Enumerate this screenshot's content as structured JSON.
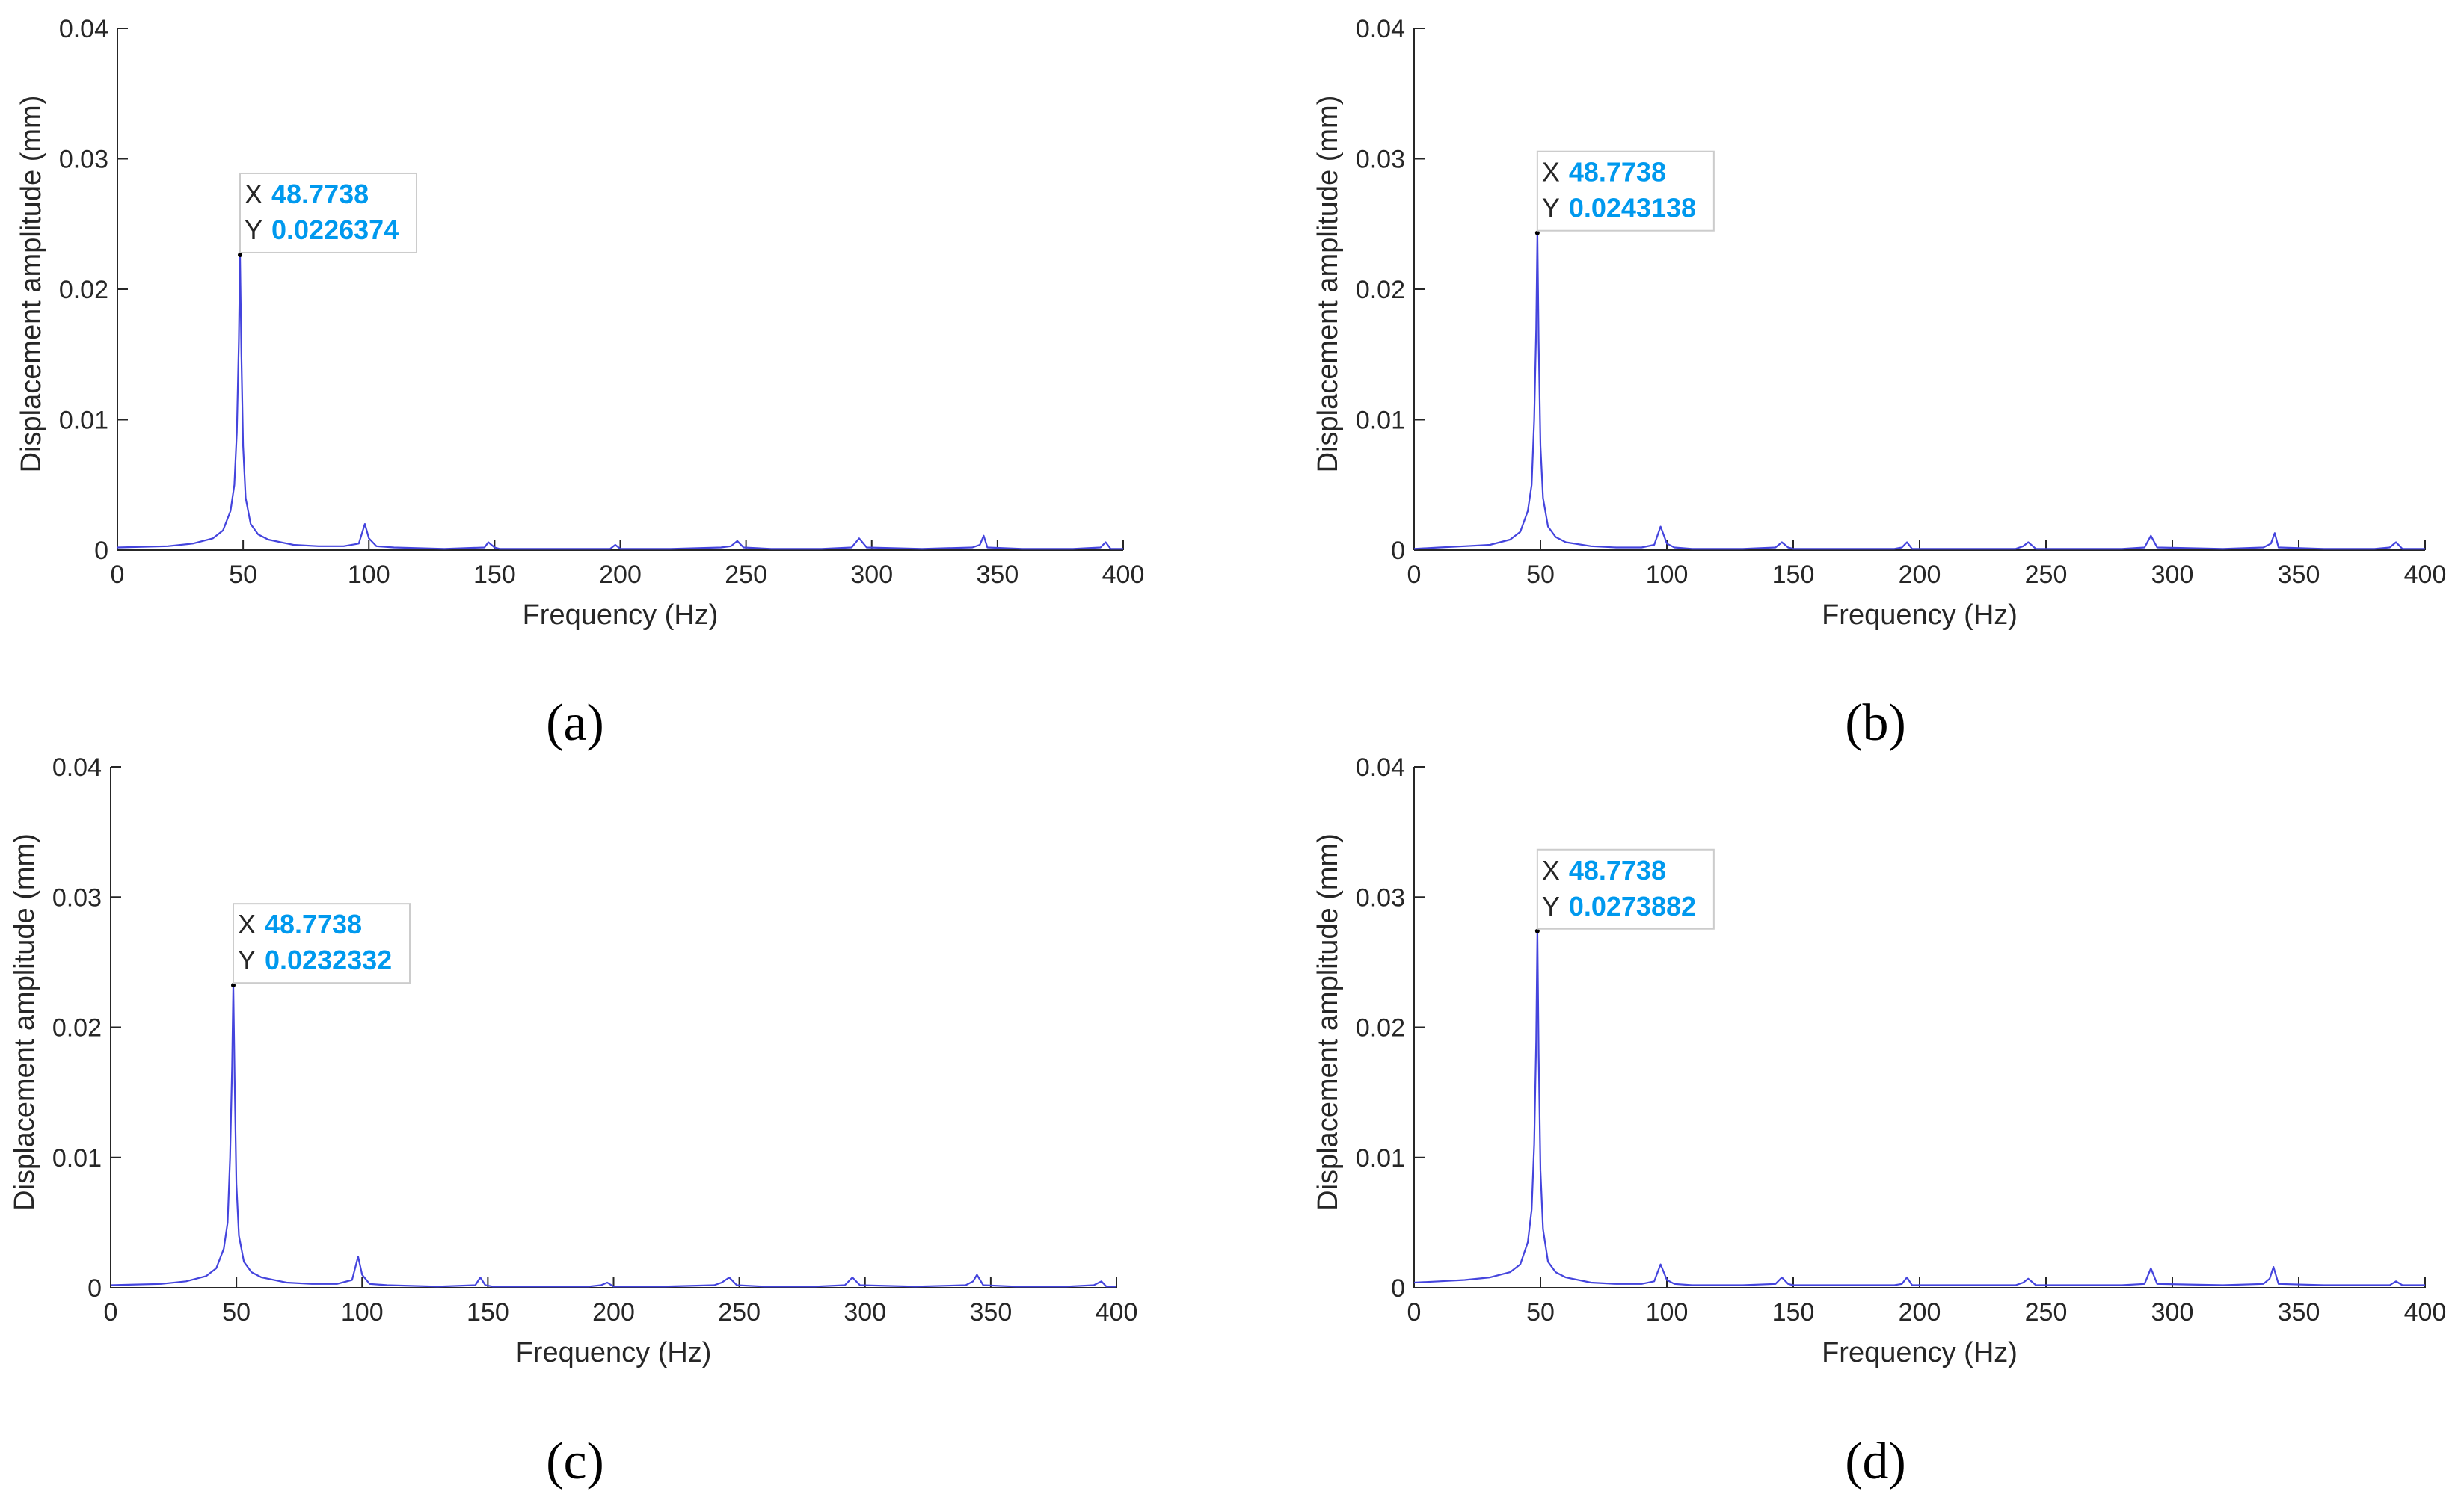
{
  "chart_data": [
    {
      "type": "line",
      "panel_label": "(a)",
      "xlabel": "Frequency (Hz)",
      "ylabel": "Displacement amplitude (mm)",
      "xlim": [
        0,
        400
      ],
      "ylim": [
        0,
        0.04
      ],
      "xticks": [
        "0",
        "50",
        "100",
        "150",
        "200",
        "250",
        "300",
        "350",
        "400"
      ],
      "yticks": [
        "0",
        "0.01",
        "0.02",
        "0.03",
        "0.04"
      ],
      "grid": false,
      "line_color": "#4444dd",
      "datatip": {
        "x_key": "X",
        "x_value": "48.7738",
        "y_key": "Y",
        "y_value": "0.0226374"
      },
      "series": [
        {
          "x": [
            0,
            10,
            20,
            30,
            38,
            42,
            45,
            46.5,
            47.5,
            48.3,
            48.7738,
            49.3,
            50,
            51,
            53,
            56,
            60,
            70,
            80,
            90,
            96,
            98.4,
            100,
            103,
            110,
            130,
            146,
            147.5,
            150,
            152,
            170,
            190,
            196,
            198,
            200,
            220,
            240,
            244,
            246.5,
            249,
            260,
            280,
            292,
            295,
            298,
            320,
            340,
            343,
            344.5,
            346,
            360,
            380,
            391,
            393,
            395,
            400
          ],
          "y": [
            0.0002,
            0.00025,
            0.0003,
            0.0005,
            0.0009,
            0.0015,
            0.003,
            0.005,
            0.009,
            0.016,
            0.0226374,
            0.015,
            0.008,
            0.004,
            0.002,
            0.0012,
            0.0008,
            0.0004,
            0.0003,
            0.0003,
            0.0005,
            0.002,
            0.0009,
            0.0003,
            0.0002,
            0.0001,
            0.0002,
            0.0006,
            0.0002,
            0.0001,
            0.0001,
            0.0001,
            0.0001,
            0.0004,
            0.0001,
            0.0001,
            0.0002,
            0.0003,
            0.0007,
            0.0002,
            0.0001,
            0.0001,
            0.0002,
            0.0009,
            0.0002,
            0.0001,
            0.0002,
            0.0004,
            0.0011,
            0.0002,
            0.0001,
            0.0001,
            0.0002,
            0.0006,
            0.0001,
            0.0001
          ]
        }
      ]
    },
    {
      "type": "line",
      "panel_label": "(b)",
      "xlabel": "Frequency (Hz)",
      "ylabel": "Displacement amplitude (mm)",
      "xlim": [
        0,
        400
      ],
      "ylim": [
        0,
        0.04
      ],
      "xticks": [
        "0",
        "50",
        "100",
        "150",
        "200",
        "250",
        "300",
        "350",
        "400"
      ],
      "yticks": [
        "0",
        "0.01",
        "0.02",
        "0.03",
        "0.04"
      ],
      "grid": false,
      "line_color": "#4444dd",
      "datatip": {
        "x_key": "X",
        "x_value": "48.7738",
        "y_key": "Y",
        "y_value": "0.0243138"
      },
      "series": [
        {
          "x": [
            0,
            10,
            20,
            30,
            38,
            42,
            45,
            46.5,
            47.5,
            48.3,
            48.7738,
            49.3,
            50,
            51,
            53,
            56,
            60,
            70,
            80,
            90,
            95,
            97.5,
            100,
            103,
            110,
            130,
            143,
            145.5,
            148,
            150,
            170,
            190,
            193,
            195,
            197,
            220,
            238,
            241,
            243,
            246,
            260,
            280,
            289,
            291.5,
            294,
            320,
            336,
            339,
            340.5,
            342,
            360,
            380,
            386,
            388.5,
            391,
            400
          ],
          "y": [
            0.0001,
            0.0002,
            0.0003,
            0.0004,
            0.0008,
            0.0014,
            0.003,
            0.005,
            0.01,
            0.017,
            0.0243138,
            0.016,
            0.008,
            0.004,
            0.0018,
            0.001,
            0.0006,
            0.0003,
            0.0002,
            0.0002,
            0.0004,
            0.0018,
            0.0005,
            0.0002,
            0.0001,
            0.0001,
            0.0002,
            0.0006,
            0.0002,
            0.0001,
            0.0001,
            0.0001,
            0.0002,
            0.0006,
            0.0001,
            0.0001,
            0.0001,
            0.0003,
            0.0006,
            0.0001,
            0.0001,
            0.0001,
            0.0002,
            0.0011,
            0.0002,
            0.0001,
            0.0002,
            0.0005,
            0.0013,
            0.0002,
            0.0001,
            0.0001,
            0.0002,
            0.0006,
            0.0001,
            0.0001
          ]
        }
      ]
    },
    {
      "type": "line",
      "panel_label": "(c)",
      "xlabel": "Frequency (Hz)",
      "ylabel": "Displacement amplitude (mm)",
      "xlim": [
        0,
        400
      ],
      "ylim": [
        0,
        0.04
      ],
      "xticks": [
        "0",
        "50",
        "100",
        "150",
        "200",
        "250",
        "300",
        "350",
        "400"
      ],
      "yticks": [
        "0",
        "0.01",
        "0.02",
        "0.03",
        "0.04"
      ],
      "grid": false,
      "line_color": "#4444dd",
      "datatip": {
        "x_key": "X",
        "x_value": "48.7738",
        "y_key": "Y",
        "y_value": "0.0232332"
      },
      "series": [
        {
          "x": [
            0,
            10,
            20,
            30,
            38,
            42,
            45,
            46.5,
            47.5,
            48.3,
            48.7738,
            49.3,
            50,
            51,
            53,
            56,
            60,
            70,
            80,
            90,
            96,
            98.4,
            100,
            103,
            110,
            130,
            145,
            147,
            149,
            152,
            170,
            190,
            195,
            197.5,
            200,
            220,
            240,
            243,
            246,
            249,
            260,
            280,
            292,
            295,
            298,
            320,
            340,
            343,
            344.5,
            347,
            360,
            380,
            391,
            394,
            396,
            400
          ],
          "y": [
            0.0002,
            0.00025,
            0.0003,
            0.0005,
            0.0009,
            0.0015,
            0.003,
            0.005,
            0.01,
            0.017,
            0.0232332,
            0.016,
            0.008,
            0.004,
            0.002,
            0.0012,
            0.0008,
            0.0004,
            0.0003,
            0.0003,
            0.0006,
            0.0024,
            0.001,
            0.0003,
            0.0002,
            0.0001,
            0.0002,
            0.0008,
            0.0002,
            0.0001,
            0.0001,
            0.0001,
            0.0002,
            0.0004,
            0.0001,
            0.0001,
            0.0002,
            0.0004,
            0.0008,
            0.0002,
            0.0001,
            0.0001,
            0.0002,
            0.0008,
            0.0002,
            0.0001,
            0.0002,
            0.0005,
            0.001,
            0.0002,
            0.0001,
            0.0001,
            0.0002,
            0.0005,
            0.0001,
            0.0001
          ]
        }
      ]
    },
    {
      "type": "line",
      "panel_label": "(d)",
      "xlabel": "Frequency (Hz)",
      "ylabel": "Displacement amplitude (mm)",
      "xlim": [
        0,
        400
      ],
      "ylim": [
        0,
        0.04
      ],
      "xticks": [
        "0",
        "50",
        "100",
        "150",
        "200",
        "250",
        "300",
        "350",
        "400"
      ],
      "yticks": [
        "0",
        "0.01",
        "0.02",
        "0.03",
        "0.04"
      ],
      "grid": false,
      "line_color": "#4444dd",
      "datatip": {
        "x_key": "X",
        "x_value": "48.7738",
        "y_key": "Y",
        "y_value": "0.0273882"
      },
      "series": [
        {
          "x": [
            0,
            10,
            20,
            30,
            38,
            42,
            45,
            46.5,
            47.5,
            48.3,
            48.7738,
            49.3,
            50,
            51,
            53,
            56,
            60,
            70,
            80,
            90,
            95,
            97.5,
            100,
            103,
            110,
            130,
            143,
            145.5,
            148,
            150,
            170,
            190,
            193,
            195,
            197,
            220,
            238,
            241,
            243,
            246,
            260,
            280,
            289,
            291.5,
            294,
            320,
            336,
            338.5,
            340,
            342,
            360,
            380,
            386,
            388.5,
            391,
            400
          ],
          "y": [
            0.0004,
            0.0005,
            0.0006,
            0.0008,
            0.0012,
            0.0018,
            0.0035,
            0.006,
            0.011,
            0.019,
            0.0273882,
            0.018,
            0.009,
            0.0045,
            0.002,
            0.0012,
            0.0008,
            0.0004,
            0.0003,
            0.0003,
            0.0005,
            0.0018,
            0.0006,
            0.0003,
            0.0002,
            0.0002,
            0.0003,
            0.0008,
            0.0003,
            0.0002,
            0.0002,
            0.0002,
            0.0003,
            0.0008,
            0.0002,
            0.0002,
            0.0002,
            0.0004,
            0.0007,
            0.0002,
            0.0002,
            0.0002,
            0.0003,
            0.0015,
            0.0003,
            0.0002,
            0.0003,
            0.0007,
            0.0016,
            0.0003,
            0.0002,
            0.0002,
            0.0002,
            0.0005,
            0.0002,
            0.0002
          ]
        }
      ]
    }
  ]
}
